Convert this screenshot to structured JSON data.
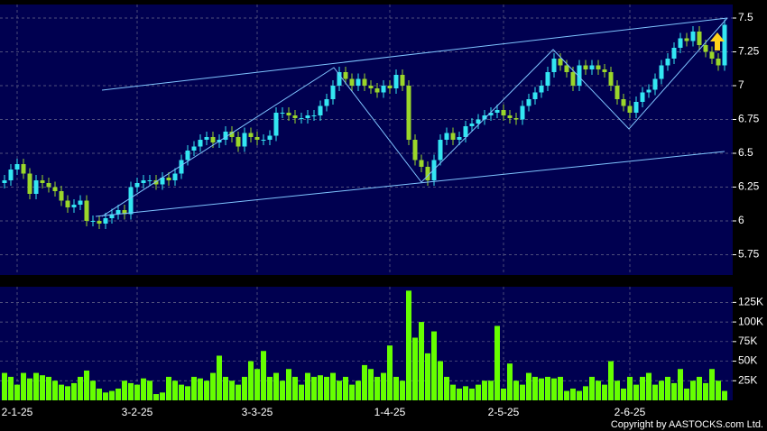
{
  "copyright": "Copyright by AASTOCKS.com Ltd.",
  "chart_data": [
    {
      "type": "candlestick",
      "up_color": "#33e6f2",
      "down_color": "#9ad62a",
      "open": [
        6.28,
        6.3,
        6.38,
        6.42,
        6.35,
        6.2,
        6.3,
        6.28,
        6.25,
        6.22,
        6.15,
        6.1,
        6.12,
        6.15,
        6.0,
        6.0,
        5.98,
        6.02,
        6.05,
        6.08,
        6.05,
        6.25,
        6.28,
        6.3,
        6.3,
        6.27,
        6.32,
        6.3,
        6.35,
        6.45,
        6.52,
        6.55,
        6.6,
        6.62,
        6.58,
        6.6,
        6.66,
        6.62,
        6.55,
        6.65,
        6.62,
        6.6,
        6.6,
        6.63,
        6.8,
        6.8,
        6.78,
        6.76,
        6.76,
        6.78,
        6.78,
        6.85,
        6.9,
        7.0,
        7.1,
        7.05,
        7.0,
        7.05,
        7.0,
        6.98,
        6.95,
        7.0,
        6.98,
        7.08,
        7.0,
        6.6,
        6.45,
        6.4,
        6.3,
        6.45,
        6.6,
        6.65,
        6.6,
        6.62,
        6.7,
        6.72,
        6.75,
        6.78,
        6.8,
        6.82,
        6.78,
        6.76,
        6.75,
        6.85,
        6.9,
        6.95,
        7.0,
        7.1,
        7.2,
        7.15,
        7.1,
        7.0,
        7.15,
        7.12,
        7.15,
        7.12,
        7.1,
        7.0,
        6.9,
        6.85,
        6.8,
        6.88,
        6.95,
        6.97,
        7.05,
        7.15,
        7.2,
        7.28,
        7.35,
        7.33,
        7.4,
        7.3,
        7.25,
        7.2,
        7.15
      ],
      "high": [
        6.34,
        6.42,
        6.46,
        6.46,
        6.39,
        6.34,
        6.34,
        6.32,
        6.29,
        6.26,
        6.19,
        6.16,
        6.19,
        6.19,
        6.04,
        6.04,
        6.06,
        6.09,
        6.12,
        6.12,
        6.29,
        6.32,
        6.34,
        6.34,
        6.34,
        6.36,
        6.36,
        6.39,
        6.49,
        6.56,
        6.59,
        6.64,
        6.66,
        6.66,
        6.64,
        6.7,
        6.7,
        6.66,
        6.69,
        6.69,
        6.66,
        6.64,
        6.67,
        6.84,
        6.84,
        6.84,
        6.82,
        6.8,
        6.82,
        6.82,
        6.89,
        6.94,
        7.04,
        7.14,
        7.14,
        7.09,
        7.09,
        7.09,
        7.04,
        7.02,
        7.04,
        7.04,
        7.12,
        7.12,
        7.04,
        6.64,
        6.49,
        6.44,
        6.49,
        6.64,
        6.69,
        6.69,
        6.66,
        6.74,
        6.76,
        6.79,
        6.82,
        6.84,
        6.86,
        6.86,
        6.82,
        6.8,
        6.89,
        6.94,
        6.99,
        7.04,
        7.14,
        7.24,
        7.24,
        7.19,
        7.14,
        7.19,
        7.19,
        7.19,
        7.19,
        7.16,
        7.14,
        7.04,
        6.94,
        6.89,
        6.92,
        6.99,
        7.01,
        7.09,
        7.19,
        7.24,
        7.32,
        7.39,
        7.39,
        7.44,
        7.44,
        7.34,
        7.29,
        7.24,
        7.49
      ],
      "low": [
        6.24,
        6.26,
        6.34,
        6.31,
        6.16,
        6.16,
        6.24,
        6.21,
        6.18,
        6.11,
        6.06,
        6.06,
        6.08,
        5.96,
        5.96,
        5.94,
        5.94,
        5.98,
        6.01,
        6.01,
        6.01,
        6.21,
        6.24,
        6.26,
        6.23,
        6.23,
        6.26,
        6.26,
        6.31,
        6.41,
        6.48,
        6.51,
        6.56,
        6.54,
        6.54,
        6.56,
        6.58,
        6.51,
        6.51,
        6.58,
        6.56,
        6.56,
        6.56,
        6.59,
        6.76,
        6.74,
        6.72,
        6.72,
        6.72,
        6.74,
        6.74,
        6.81,
        6.86,
        6.96,
        7.01,
        6.96,
        6.96,
        6.96,
        6.94,
        6.91,
        6.91,
        6.94,
        6.94,
        6.96,
        6.56,
        6.41,
        6.36,
        6.26,
        6.26,
        6.41,
        6.56,
        6.56,
        6.56,
        6.58,
        6.66,
        6.68,
        6.71,
        6.74,
        6.76,
        6.74,
        6.72,
        6.71,
        6.71,
        6.81,
        6.86,
        6.91,
        6.96,
        7.06,
        7.11,
        7.06,
        6.96,
        6.96,
        7.08,
        7.08,
        7.08,
        7.06,
        6.96,
        6.86,
        6.81,
        6.76,
        6.76,
        6.84,
        6.91,
        6.93,
        7.01,
        7.11,
        7.16,
        7.24,
        7.29,
        7.29,
        7.26,
        7.21,
        7.16,
        7.11,
        7.11
      ],
      "close": [
        6.3,
        6.38,
        6.42,
        6.35,
        6.2,
        6.3,
        6.28,
        6.25,
        6.22,
        6.15,
        6.1,
        6.12,
        6.15,
        6.0,
        6.0,
        5.98,
        6.02,
        6.05,
        6.08,
        6.05,
        6.25,
        6.28,
        6.3,
        6.3,
        6.27,
        6.32,
        6.3,
        6.35,
        6.45,
        6.52,
        6.55,
        6.6,
        6.62,
        6.58,
        6.6,
        6.66,
        6.62,
        6.55,
        6.65,
        6.62,
        6.6,
        6.6,
        6.63,
        6.8,
        6.8,
        6.78,
        6.76,
        6.76,
        6.78,
        6.78,
        6.85,
        6.9,
        7.0,
        7.1,
        7.05,
        7.0,
        7.05,
        7.0,
        6.98,
        6.95,
        7.0,
        6.98,
        7.08,
        7.0,
        6.6,
        6.45,
        6.4,
        6.3,
        6.45,
        6.6,
        6.65,
        6.6,
        6.62,
        6.7,
        6.72,
        6.75,
        6.78,
        6.8,
        6.82,
        6.78,
        6.76,
        6.75,
        6.85,
        6.9,
        6.95,
        7.0,
        7.1,
        7.2,
        7.15,
        7.1,
        7.0,
        7.15,
        7.12,
        7.15,
        7.12,
        7.1,
        7.0,
        6.9,
        6.85,
        6.8,
        6.88,
        6.95,
        6.97,
        7.05,
        7.15,
        7.2,
        7.28,
        7.35,
        7.33,
        7.4,
        7.3,
        7.25,
        7.2,
        7.15,
        7.45
      ],
      "ylim": [
        5.6,
        7.6
      ],
      "yticks": [
        5.75,
        6,
        6.25,
        6.5,
        6.75,
        7,
        7.25,
        7.5
      ],
      "grid": true
    },
    {
      "type": "bar",
      "color": "#66ff00",
      "categories": [
        null,
        null,
        "2-1-25",
        null,
        null,
        null,
        null,
        null,
        null,
        null,
        null,
        null,
        null,
        null,
        null,
        null,
        null,
        null,
        null,
        null,
        null,
        "3-2-25",
        null,
        null,
        null,
        null,
        null,
        null,
        null,
        null,
        null,
        null,
        null,
        null,
        null,
        null,
        null,
        null,
        null,
        null,
        "3-3-25",
        null,
        null,
        null,
        null,
        null,
        null,
        null,
        null,
        null,
        null,
        null,
        null,
        null,
        null,
        null,
        null,
        null,
        null,
        null,
        null,
        "1-4-25",
        null,
        null,
        null,
        null,
        null,
        null,
        null,
        null,
        null,
        null,
        null,
        null,
        null,
        null,
        null,
        null,
        null,
        "2-5-25",
        null,
        null,
        null,
        null,
        null,
        null,
        null,
        null,
        null,
        null,
        null,
        null,
        null,
        null,
        null,
        null,
        null,
        null,
        null,
        "2-6-25",
        null,
        null,
        null,
        null,
        null,
        null,
        null,
        null,
        null,
        null,
        null,
        null,
        null,
        null,
        null
      ],
      "values": [
        35000,
        30000,
        20000,
        35000,
        28000,
        35000,
        32000,
        30000,
        25000,
        20000,
        18000,
        22000,
        30000,
        38000,
        25000,
        15000,
        10000,
        12000,
        15000,
        25000,
        22000,
        20000,
        28000,
        25000,
        8000,
        10000,
        30000,
        25000,
        20000,
        18000,
        30000,
        28000,
        25000,
        35000,
        57000,
        30000,
        25000,
        20000,
        30000,
        50000,
        40000,
        63000,
        30000,
        35000,
        25000,
        40000,
        30000,
        20000,
        35000,
        30000,
        32000,
        30000,
        35000,
        25000,
        30000,
        20000,
        25000,
        45000,
        40000,
        30000,
        35000,
        70000,
        30000,
        25000,
        140000,
        80000,
        100000,
        60000,
        88000,
        50000,
        30000,
        20000,
        15000,
        18000,
        15000,
        20000,
        25000,
        25000,
        95000,
        15000,
        47000,
        25000,
        20000,
        35000,
        30000,
        28000,
        30000,
        28000,
        30000,
        12000,
        15000,
        12000,
        18000,
        30000,
        25000,
        20000,
        50000,
        25000,
        15000,
        30000,
        20000,
        30000,
        35000,
        20000,
        25000,
        30000,
        22000,
        40000,
        15000,
        25000,
        30000,
        22000,
        40000,
        25000,
        12000
      ],
      "ylim": [
        0,
        145000
      ],
      "yticks": [
        {
          "value": 25000,
          "label": "25K"
        },
        {
          "value": 50000,
          "label": "50K"
        },
        {
          "value": 75000,
          "label": "75K"
        },
        {
          "value": 100000,
          "label": "100K"
        },
        {
          "value": 125000,
          "label": "125K"
        }
      ],
      "grid": true
    }
  ]
}
